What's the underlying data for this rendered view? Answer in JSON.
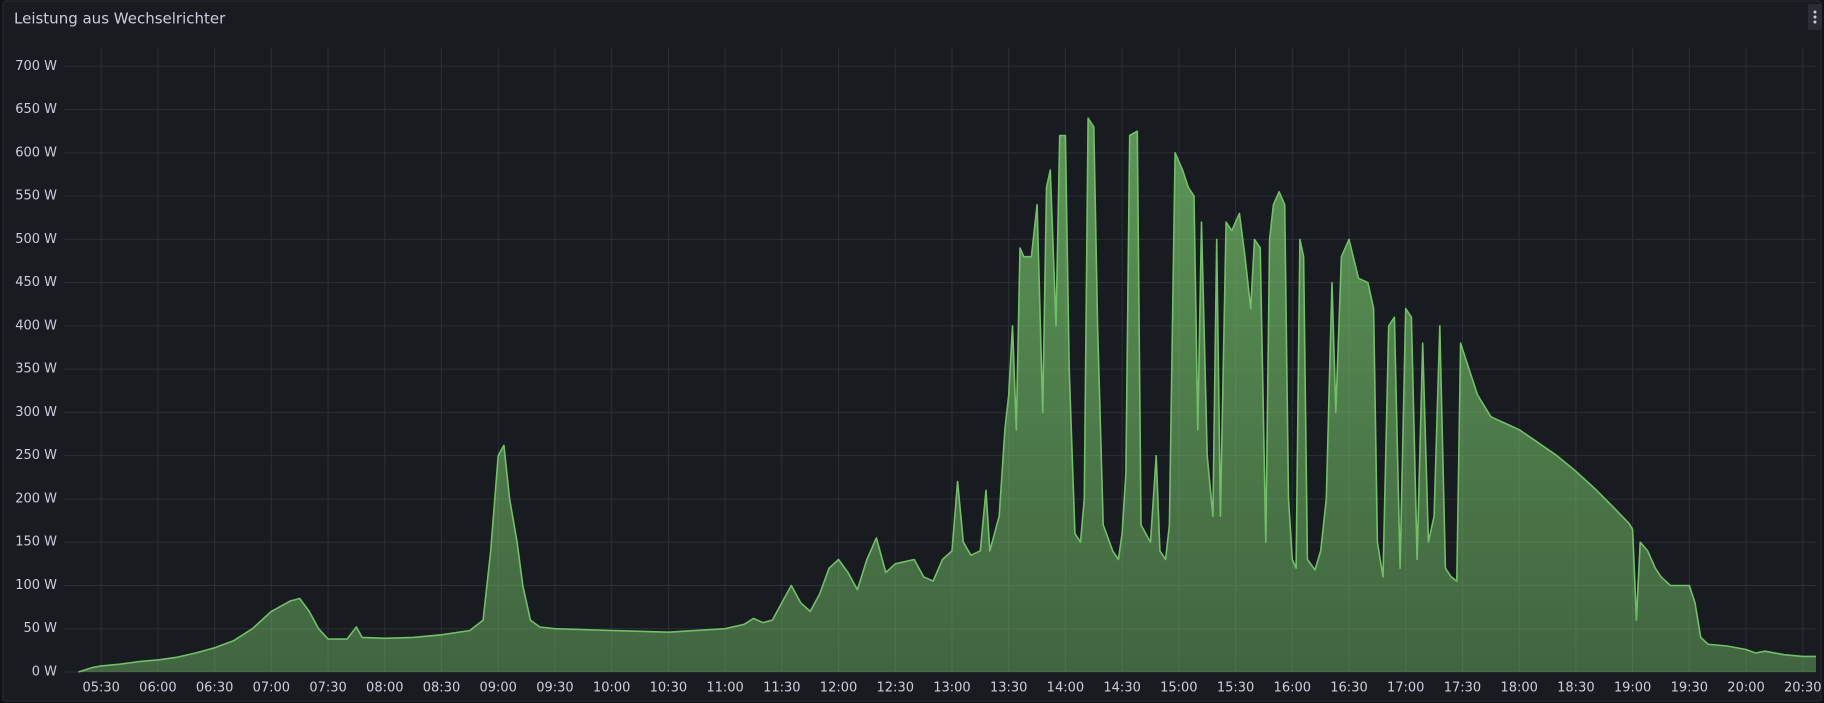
{
  "chart_data": {
    "type": "line",
    "title": "Leistung aus Wechselrichter",
    "color": "#73bf69",
    "grid": true,
    "xlim": [
      "05:18",
      "20:37"
    ],
    "xticks": [
      "05:30",
      "06:00",
      "06:30",
      "07:00",
      "07:30",
      "08:00",
      "08:30",
      "09:00",
      "09:30",
      "10:00",
      "10:30",
      "11:00",
      "11:30",
      "12:00",
      "12:30",
      "13:00",
      "13:30",
      "14:00",
      "14:30",
      "15:00",
      "15:30",
      "16:00",
      "16:30",
      "17:00",
      "17:30",
      "18:00",
      "18:30",
      "19:00",
      "19:30",
      "20:00",
      "20:30"
    ],
    "ylim": [
      0,
      700
    ],
    "yticks": [
      {
        "value": 0,
        "label": "0 W"
      },
      {
        "value": 50,
        "label": "50 W"
      },
      {
        "value": 100,
        "label": "100 W"
      },
      {
        "value": 150,
        "label": "150 W"
      },
      {
        "value": 200,
        "label": "200 W"
      },
      {
        "value": 250,
        "label": "250 W"
      },
      {
        "value": 300,
        "label": "300 W"
      },
      {
        "value": 350,
        "label": "350 W"
      },
      {
        "value": 400,
        "label": "400 W"
      },
      {
        "value": 450,
        "label": "450 W"
      },
      {
        "value": 500,
        "label": "500 W"
      },
      {
        "value": 550,
        "label": "550 W"
      },
      {
        "value": 600,
        "label": "600 W"
      },
      {
        "value": 650,
        "label": "650 W"
      },
      {
        "value": 700,
        "label": "700 W"
      }
    ],
    "x": [
      "05:18",
      "05:25",
      "05:30",
      "05:40",
      "05:50",
      "06:00",
      "06:10",
      "06:20",
      "06:30",
      "06:40",
      "06:50",
      "07:00",
      "07:10",
      "07:15",
      "07:20",
      "07:25",
      "07:30",
      "07:40",
      "07:45",
      "07:48",
      "08:00",
      "08:15",
      "08:30",
      "08:45",
      "08:52",
      "08:56",
      "09:00",
      "09:03",
      "09:06",
      "09:10",
      "09:13",
      "09:15",
      "09:17",
      "09:22",
      "09:30",
      "10:00",
      "10:30",
      "11:00",
      "11:10",
      "11:15",
      "11:20",
      "11:25",
      "11:30",
      "11:35",
      "11:40",
      "11:45",
      "11:50",
      "11:55",
      "12:00",
      "12:05",
      "12:10",
      "12:15",
      "12:20",
      "12:25",
      "12:30",
      "12:40",
      "12:45",
      "12:50",
      "12:55",
      "13:00",
      "13:03",
      "13:06",
      "13:10",
      "13:15",
      "13:18",
      "13:20",
      "13:25",
      "13:28",
      "13:30",
      "13:32",
      "13:34",
      "13:36",
      "13:38",
      "13:42",
      "13:45",
      "13:48",
      "13:50",
      "13:52",
      "13:55",
      "13:57",
      "14:00",
      "14:02",
      "14:05",
      "14:08",
      "14:10",
      "14:12",
      "14:15",
      "14:17",
      "14:20",
      "14:25",
      "14:28",
      "14:30",
      "14:32",
      "14:34",
      "14:38",
      "14:40",
      "14:45",
      "14:48",
      "14:50",
      "14:53",
      "14:55",
      "14:58",
      "15:02",
      "15:05",
      "15:08",
      "15:10",
      "15:12",
      "15:15",
      "15:18",
      "15:20",
      "15:22",
      "15:25",
      "15:28",
      "15:30",
      "15:32",
      "15:35",
      "15:38",
      "15:40",
      "15:43",
      "15:46",
      "15:48",
      "15:50",
      "15:53",
      "15:56",
      "15:58",
      "16:00",
      "16:02",
      "16:04",
      "16:06",
      "16:08",
      "16:12",
      "16:15",
      "16:18",
      "16:21",
      "16:23",
      "16:26",
      "16:30",
      "16:35",
      "16:40",
      "16:43",
      "16:45",
      "16:48",
      "16:51",
      "16:54",
      "16:57",
      "17:00",
      "17:03",
      "17:06",
      "17:09",
      "17:12",
      "17:15",
      "17:18",
      "17:21",
      "17:24",
      "17:27",
      "17:29",
      "17:32",
      "17:38",
      "17:45",
      "17:50",
      "17:55",
      "18:00",
      "18:10",
      "18:20",
      "18:30",
      "18:40",
      "18:50",
      "18:58",
      "19:00",
      "19:02",
      "19:04",
      "19:08",
      "19:12",
      "19:15",
      "19:20",
      "19:25",
      "19:30",
      "19:33",
      "19:36",
      "19:40",
      "19:50",
      "20:00",
      "20:05",
      "20:10",
      "20:20",
      "20:30",
      "20:37"
    ],
    "values": [
      0,
      5,
      7,
      9,
      12,
      14,
      17,
      22,
      28,
      36,
      50,
      70,
      82,
      85,
      70,
      50,
      38,
      38,
      52,
      40,
      39,
      40,
      43,
      48,
      60,
      140,
      250,
      262,
      200,
      150,
      100,
      80,
      60,
      52,
      50,
      48,
      46,
      50,
      55,
      62,
      57,
      60,
      80,
      100,
      80,
      70,
      90,
      120,
      130,
      115,
      95,
      130,
      155,
      115,
      125,
      130,
      110,
      105,
      130,
      140,
      220,
      150,
      135,
      140,
      210,
      140,
      180,
      280,
      320,
      400,
      280,
      490,
      480,
      480,
      540,
      300,
      560,
      580,
      400,
      620,
      620,
      350,
      160,
      150,
      200,
      640,
      630,
      400,
      170,
      140,
      130,
      160,
      230,
      620,
      625,
      170,
      150,
      250,
      140,
      130,
      170,
      600,
      580,
      560,
      550,
      280,
      520,
      250,
      180,
      500,
      180,
      520,
      510,
      520,
      530,
      480,
      420,
      500,
      490,
      150,
      500,
      540,
      555,
      540,
      200,
      130,
      120,
      500,
      480,
      130,
      118,
      140,
      200,
      450,
      300,
      480,
      500,
      455,
      450,
      420,
      150,
      110,
      400,
      410,
      120,
      420,
      410,
      130,
      380,
      150,
      180,
      400,
      120,
      110,
      105,
      380,
      360,
      320,
      295,
      290,
      285,
      280,
      265,
      250,
      232,
      212,
      190,
      172,
      165,
      60,
      150,
      140,
      120,
      110,
      100,
      100,
      100,
      80,
      40,
      32,
      30,
      26,
      22,
      24,
      20,
      18,
      18
    ]
  }
}
